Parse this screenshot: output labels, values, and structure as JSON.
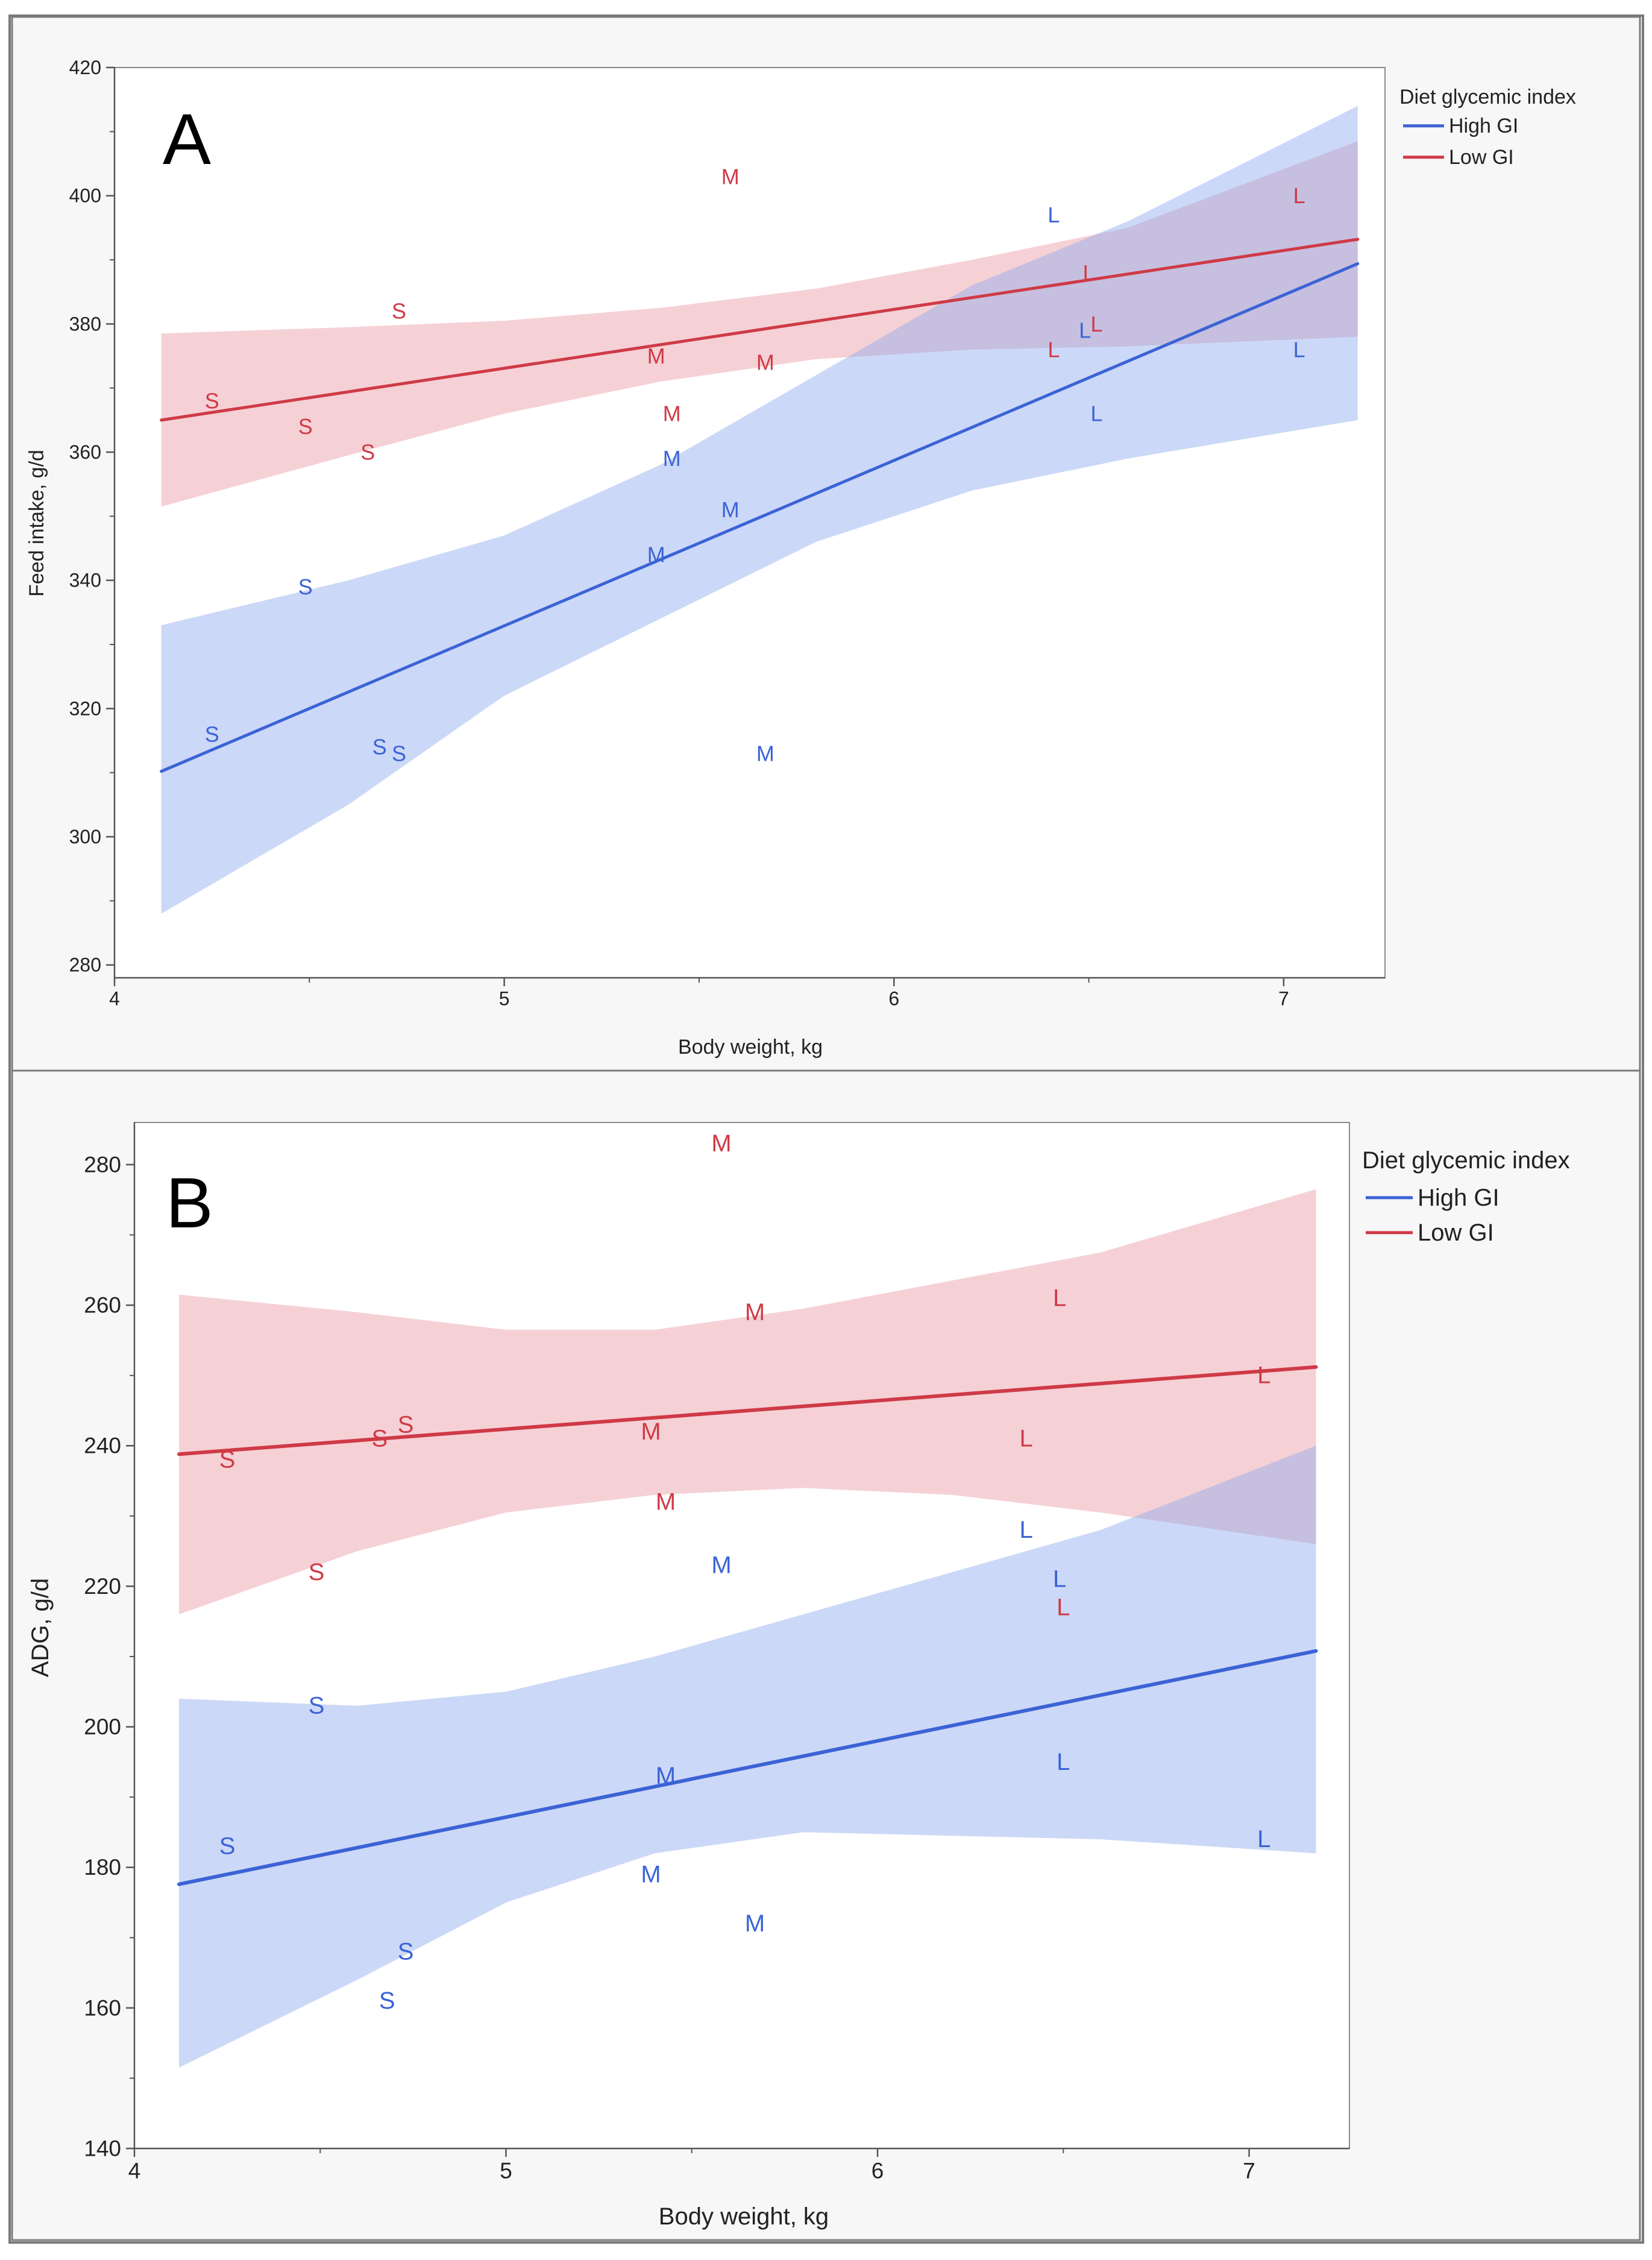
{
  "colors": {
    "high_gi": "#3b63d6",
    "low_gi": "#cf3a46",
    "high_gi_band": "#8fa8ee",
    "low_gi_band": "#e89aa5",
    "axis": "#555555",
    "text": "#222222",
    "frame": "#7a7a7a",
    "panel_bg": "#f7f7f7",
    "plot_bg": "#ffffff"
  },
  "chart_data": [
    {
      "type": "scatter",
      "panel_label": "A",
      "xlabel": "Body weight, kg",
      "ylabel": "Feed intake, g/d",
      "xlim": [
        4,
        7.26
      ],
      "ylim": [
        278,
        420
      ],
      "xticks": [
        4,
        5,
        6,
        7
      ],
      "yticks": [
        280,
        300,
        320,
        340,
        360,
        380,
        400,
        420
      ],
      "legend": {
        "title": "Diet glycemic index",
        "position": "right-top",
        "entries": [
          "High GI",
          "Low GI"
        ]
      },
      "series": [
        {
          "name": "High GI",
          "fit": {
            "x": [
              4.12,
              7.19
            ],
            "y": [
              310.2,
              389.4
            ]
          },
          "band": {
            "x": [
              4.12,
              4.6,
              5.0,
              5.4,
              5.8,
              6.2,
              6.6,
              7.19
            ],
            "upper": [
              333,
              340,
              347,
              358,
              372,
              386,
              396,
              414
            ],
            "lower": [
              288,
              305,
              322,
              334,
              346,
              354,
              359,
              365
            ]
          },
          "points": [
            {
              "x": 4.25,
              "y": 316,
              "label": "S"
            },
            {
              "x": 4.49,
              "y": 339,
              "label": "S"
            },
            {
              "x": 4.68,
              "y": 314,
              "label": "S"
            },
            {
              "x": 4.73,
              "y": 313,
              "label": "S"
            },
            {
              "x": 5.39,
              "y": 344,
              "label": "M"
            },
            {
              "x": 5.43,
              "y": 359,
              "label": "M"
            },
            {
              "x": 5.58,
              "y": 351,
              "label": "M"
            },
            {
              "x": 5.67,
              "y": 313,
              "label": "M"
            },
            {
              "x": 6.41,
              "y": 397,
              "label": "L"
            },
            {
              "x": 6.49,
              "y": 379,
              "label": "L"
            },
            {
              "x": 6.52,
              "y": 366,
              "label": "L"
            },
            {
              "x": 7.04,
              "y": 376,
              "label": "L"
            }
          ]
        },
        {
          "name": "Low GI",
          "fit": {
            "x": [
              4.12,
              7.19
            ],
            "y": [
              365.0,
              393.2
            ]
          },
          "band": {
            "x": [
              4.12,
              4.6,
              5.0,
              5.4,
              5.8,
              6.2,
              6.6,
              7.19
            ],
            "upper": [
              378.5,
              379.5,
              380.5,
              382.5,
              385.5,
              390,
              395,
              408.5
            ],
            "lower": [
              351.5,
              359.5,
              366,
              371,
              374.5,
              376,
              376.5,
              378
            ]
          },
          "points": [
            {
              "x": 4.25,
              "y": 368,
              "label": "S"
            },
            {
              "x": 4.49,
              "y": 364,
              "label": "S"
            },
            {
              "x": 4.65,
              "y": 360,
              "label": "S"
            },
            {
              "x": 4.73,
              "y": 382,
              "label": "S"
            },
            {
              "x": 5.39,
              "y": 375,
              "label": "M"
            },
            {
              "x": 5.43,
              "y": 366,
              "label": "M"
            },
            {
              "x": 5.58,
              "y": 403,
              "label": "M"
            },
            {
              "x": 5.67,
              "y": 374,
              "label": "M"
            },
            {
              "x": 6.41,
              "y": 376,
              "label": "L"
            },
            {
              "x": 6.5,
              "y": 388,
              "label": "L"
            },
            {
              "x": 6.52,
              "y": 380,
              "label": "L"
            },
            {
              "x": 7.04,
              "y": 400,
              "label": "L"
            }
          ]
        }
      ]
    },
    {
      "type": "scatter",
      "panel_label": "B",
      "xlabel": "Body weight, kg",
      "ylabel": "ADG, g/d",
      "xlim": [
        4,
        7.27
      ],
      "ylim": [
        140,
        286
      ],
      "xticks": [
        4,
        5,
        6,
        7
      ],
      "yticks": [
        140,
        160,
        180,
        200,
        220,
        240,
        260,
        280
      ],
      "legend": {
        "title": "Diet glycemic index",
        "position": "right-top",
        "entries": [
          "High GI",
          "Low GI"
        ]
      },
      "series": [
        {
          "name": "High GI",
          "fit": {
            "x": [
              4.12,
              7.18
            ],
            "y": [
              177.6,
              210.8
            ]
          },
          "band": {
            "x": [
              4.12,
              4.6,
              5.0,
              5.4,
              5.8,
              6.2,
              6.6,
              7.18
            ],
            "upper": [
              204,
              203,
              205,
              210,
              216,
              222,
              228,
              240
            ],
            "lower": [
              151.5,
              164,
              175,
              182,
              185,
              184.5,
              184,
              182
            ]
          },
          "points": [
            {
              "x": 4.25,
              "y": 183,
              "label": "S"
            },
            {
              "x": 4.49,
              "y": 203,
              "label": "S"
            },
            {
              "x": 4.68,
              "y": 161,
              "label": "S"
            },
            {
              "x": 4.73,
              "y": 168,
              "label": "S"
            },
            {
              "x": 5.39,
              "y": 179,
              "label": "M"
            },
            {
              "x": 5.43,
              "y": 193,
              "label": "M"
            },
            {
              "x": 5.58,
              "y": 223,
              "label": "M"
            },
            {
              "x": 5.67,
              "y": 172,
              "label": "M"
            },
            {
              "x": 6.4,
              "y": 228,
              "label": "L"
            },
            {
              "x": 6.49,
              "y": 221,
              "label": "L"
            },
            {
              "x": 6.5,
              "y": 195,
              "label": "L"
            },
            {
              "x": 7.04,
              "y": 184,
              "label": "L"
            }
          ]
        },
        {
          "name": "Low GI",
          "fit": {
            "x": [
              4.12,
              7.18
            ],
            "y": [
              238.8,
              251.2
            ]
          },
          "band": {
            "x": [
              4.12,
              4.6,
              5.0,
              5.4,
              5.8,
              6.2,
              6.6,
              7.18
            ],
            "upper": [
              261.5,
              259,
              256.5,
              256.5,
              259.5,
              263.5,
              267.5,
              276.5
            ],
            "lower": [
              216,
              225,
              230.5,
              233,
              234,
              233,
              230.5,
              226
            ]
          },
          "points": [
            {
              "x": 4.25,
              "y": 238,
              "label": "S"
            },
            {
              "x": 4.49,
              "y": 222,
              "label": "S"
            },
            {
              "x": 4.66,
              "y": 241,
              "label": "S"
            },
            {
              "x": 4.73,
              "y": 243,
              "label": "S"
            },
            {
              "x": 5.39,
              "y": 242,
              "label": "M"
            },
            {
              "x": 5.43,
              "y": 232,
              "label": "M"
            },
            {
              "x": 5.58,
              "y": 283,
              "label": "M"
            },
            {
              "x": 5.67,
              "y": 259,
              "label": "M"
            },
            {
              "x": 6.4,
              "y": 241,
              "label": "L"
            },
            {
              "x": 6.49,
              "y": 261,
              "label": "L"
            },
            {
              "x": 6.5,
              "y": 217,
              "label": "L"
            },
            {
              "x": 7.04,
              "y": 250,
              "label": "L"
            }
          ]
        }
      ]
    }
  ]
}
